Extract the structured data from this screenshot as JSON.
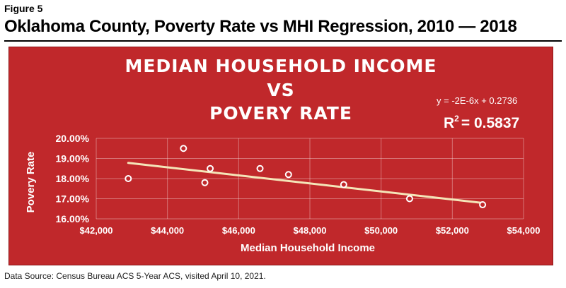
{
  "figure": {
    "label": "Figure 5",
    "title": "Oklahoma County, Poverty Rate vs MHI Regression, 2010 — 2018"
  },
  "source": "Data Source: Census Bureau ACS 5-Year ACS, visited April 10, 2021.",
  "colors": {
    "panel": "#c0282b",
    "trendline": "#f4e5b8",
    "text": "#ffffff",
    "marker_fill": "#c0282b"
  },
  "chart_data": {
    "type": "scatter",
    "title_lines": [
      "MEDIAN HOUSEHOLD INCOME",
      "VS",
      "POVERY RATE"
    ],
    "xlabel": "Median Household Income",
    "ylabel": "Povery Rate",
    "xlim": [
      42000,
      54000
    ],
    "ylim": [
      0.16,
      0.2
    ],
    "x_ticks": [
      42000,
      44000,
      46000,
      48000,
      50000,
      52000,
      54000
    ],
    "x_tick_labels": [
      "$42,000",
      "$44,000",
      "$46,000",
      "$48,000",
      "$50,000",
      "$52,000",
      "$54,000"
    ],
    "y_ticks": [
      0.16,
      0.17,
      0.18,
      0.19,
      0.2
    ],
    "y_tick_labels": [
      "16.00%",
      "17.00%",
      "18.00%",
      "19.00%",
      "20.00%"
    ],
    "grid": true,
    "points": [
      {
        "x": 42900,
        "y": 0.18
      },
      {
        "x": 44450,
        "y": 0.195
      },
      {
        "x": 45050,
        "y": 0.178
      },
      {
        "x": 45200,
        "y": 0.185
      },
      {
        "x": 46600,
        "y": 0.185
      },
      {
        "x": 47400,
        "y": 0.182
      },
      {
        "x": 48950,
        "y": 0.177
      },
      {
        "x": 50800,
        "y": 0.17
      },
      {
        "x": 52850,
        "y": 0.167
      }
    ],
    "trendline": {
      "equation": "y = -2E-6x + 0.2736",
      "r_squared_label": "R",
      "r_squared_sup": "2",
      "r_squared_value": "= 0.5837",
      "start": {
        "x": 42900,
        "y": 0.1878
      },
      "end": {
        "x": 52850,
        "y": 0.1679
      }
    }
  }
}
